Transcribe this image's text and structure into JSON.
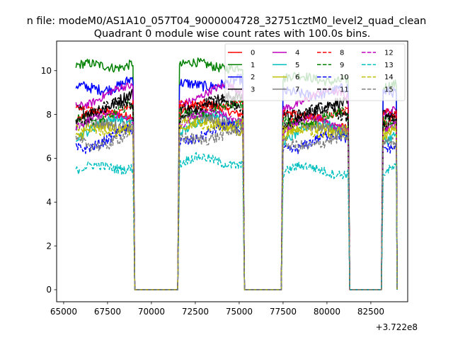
{
  "figure": {
    "suptitle": "n file: modeM0/AS1A10_057T04_9000004728_32751cztM0_level2_quad_clean",
    "title": "Quadrant 0 module wise count rates with 100.0s bins.",
    "offset_text": "+3.722e8"
  },
  "chart_data": {
    "type": "line",
    "title": "Quadrant 0 module wise count rates with 100.0s bins.",
    "xlabel": "",
    "ylabel": "",
    "x_offset": 372200000,
    "xlim": [
      64600,
      84600
    ],
    "ylim": [
      -0.55,
      11.35
    ],
    "xticks": [
      65000,
      67500,
      70000,
      72500,
      75000,
      77500,
      80000,
      82500
    ],
    "xtick_labels": [
      "65000",
      "67500",
      "70000",
      "72500",
      "75000",
      "77500",
      "80000",
      "82500"
    ],
    "yticks": [
      0,
      2,
      4,
      6,
      8,
      10
    ],
    "ytick_labels": [
      "0",
      "2",
      "4",
      "6",
      "8",
      "10"
    ],
    "legend_position": "top-right",
    "legend_columns": 4,
    "segments": [
      {
        "start": 65700,
        "end": 68950,
        "drop_end": 69050,
        "zero_until": 71500,
        "rise_until": 71600
      },
      {
        "start": 71600,
        "end": 75200,
        "drop_end": 75300,
        "zero_until": 77400,
        "rise_until": 77500
      },
      {
        "start": 77500,
        "end": 81200,
        "drop_end": 81300,
        "zero_until": 83100,
        "rise_until": 83200
      },
      {
        "start": 83200,
        "end": 83950,
        "drop_end": 84000,
        "zero_until": 84000,
        "rise_until": 84000
      }
    ],
    "series": [
      {
        "name": "0",
        "color": "#ff0000",
        "dash": "solid",
        "levels": [
          7.7,
          8.0,
          7.4,
          7.5
        ]
      },
      {
        "name": "1",
        "color": "#008000",
        "dash": "solid",
        "levels": [
          10.0,
          10.0,
          9.4,
          9.0
        ]
      },
      {
        "name": "2",
        "color": "#0000ff",
        "dash": "solid",
        "levels": [
          9.1,
          9.2,
          8.8,
          8.8
        ]
      },
      {
        "name": "3",
        "color": "#000000",
        "dash": "solid",
        "levels": [
          8.2,
          8.3,
          8.0,
          8.0
        ]
      },
      {
        "name": "4",
        "color": "#bf00bf",
        "dash": "solid",
        "levels": [
          8.6,
          8.7,
          8.5,
          8.3
        ]
      },
      {
        "name": "5",
        "color": "#00bfbf",
        "dash": "solid",
        "levels": [
          7.2,
          7.4,
          7.0,
          7.0
        ]
      },
      {
        "name": "6",
        "color": "#bfbf00",
        "dash": "solid",
        "levels": [
          7.0,
          7.2,
          7.0,
          7.0
        ]
      },
      {
        "name": "7",
        "color": "#808080",
        "dash": "solid",
        "levels": [
          7.3,
          7.5,
          7.2,
          7.2
        ]
      },
      {
        "name": "8",
        "color": "#ff0000",
        "dash": "dashed",
        "levels": [
          8.0,
          8.2,
          7.8,
          7.8
        ]
      },
      {
        "name": "9",
        "color": "#008000",
        "dash": "dashed",
        "levels": [
          7.8,
          8.0,
          7.6,
          7.6
        ]
      },
      {
        "name": "10",
        "color": "#0000ff",
        "dash": "dashed",
        "levels": [
          6.6,
          6.9,
          6.5,
          6.6
        ]
      },
      {
        "name": "11",
        "color": "#000000",
        "dash": "dashed",
        "levels": [
          7.9,
          8.1,
          7.7,
          7.7
        ]
      },
      {
        "name": "12",
        "color": "#bf00bf",
        "dash": "dashed",
        "levels": [
          7.5,
          7.6,
          7.3,
          7.3
        ]
      },
      {
        "name": "13",
        "color": "#00bfbf",
        "dash": "dashed",
        "levels": [
          5.3,
          5.6,
          5.2,
          5.2
        ]
      },
      {
        "name": "14",
        "color": "#bfbf00",
        "dash": "dashed",
        "levels": [
          7.1,
          7.3,
          7.0,
          7.0
        ]
      },
      {
        "name": "15",
        "color": "#808080",
        "dash": "dashed",
        "levels": [
          6.6,
          6.8,
          6.5,
          6.6
        ]
      }
    ]
  }
}
